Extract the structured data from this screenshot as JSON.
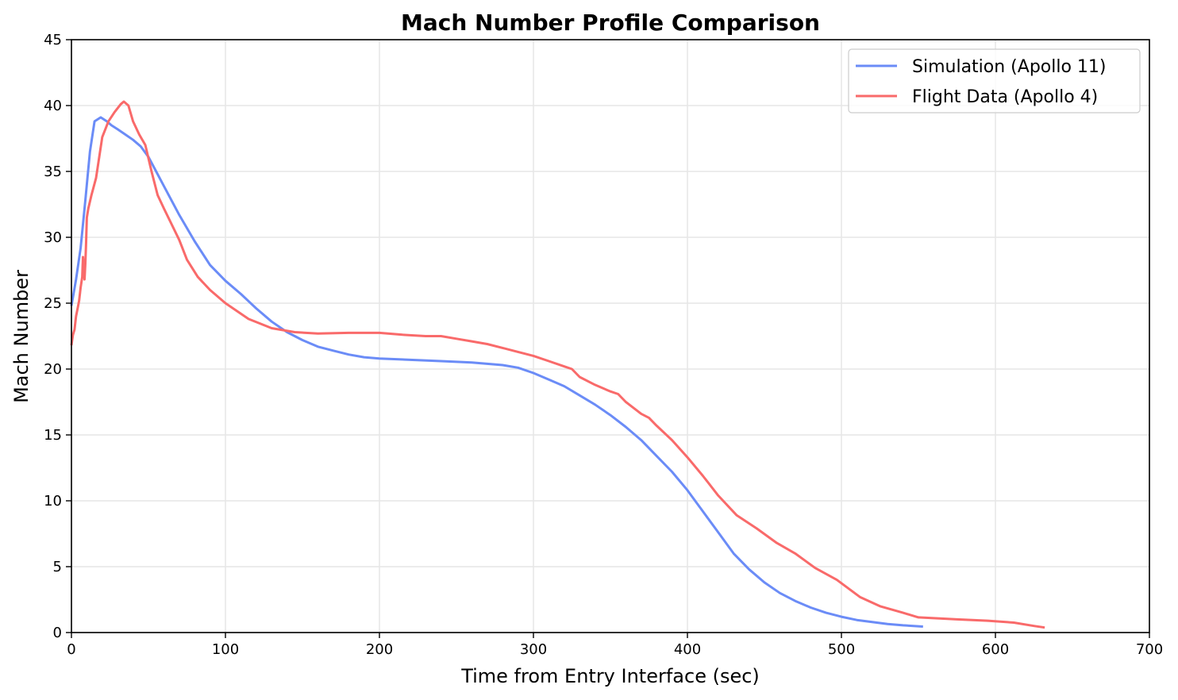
{
  "chart_data": {
    "type": "line",
    "title": "Mach Number Profile Comparison",
    "xlabel": "Time from Entry Interface (sec)",
    "ylabel": "Mach Number",
    "xlim": [
      0,
      700
    ],
    "ylim": [
      0,
      45
    ],
    "xticks": [
      0,
      100,
      200,
      300,
      400,
      500,
      600,
      700
    ],
    "yticks": [
      0,
      5,
      10,
      15,
      20,
      25,
      30,
      35,
      40,
      45
    ],
    "grid": true,
    "legend_position": "upper right",
    "series": [
      {
        "name": "Simulation (Apollo 11)",
        "color": "#6b8cf7",
        "x": [
          0,
          3,
          6,
          9,
          12,
          15,
          19,
          23,
          26,
          30,
          35,
          40,
          45,
          50,
          55,
          60,
          70,
          80,
          90,
          100,
          110,
          120,
          130,
          140,
          150,
          160,
          170,
          180,
          190,
          200,
          220,
          240,
          260,
          280,
          290,
          300,
          310,
          320,
          330,
          340,
          350,
          360,
          370,
          380,
          390,
          400,
          410,
          420,
          430,
          440,
          450,
          460,
          470,
          480,
          490,
          500,
          510,
          520,
          530,
          540,
          553
        ],
        "y": [
          24.8,
          26.8,
          29.2,
          32.8,
          36.5,
          38.8,
          39.1,
          38.8,
          38.5,
          38.2,
          37.8,
          37.4,
          36.9,
          36.1,
          35.0,
          33.9,
          31.7,
          29.7,
          27.9,
          26.7,
          25.7,
          24.6,
          23.6,
          22.8,
          22.2,
          21.7,
          21.4,
          21.1,
          20.9,
          20.8,
          20.7,
          20.6,
          20.5,
          20.3,
          20.1,
          19.7,
          19.2,
          18.7,
          18.0,
          17.3,
          16.5,
          15.6,
          14.6,
          13.4,
          12.2,
          10.8,
          9.2,
          7.6,
          6.0,
          4.8,
          3.8,
          3.0,
          2.4,
          1.9,
          1.5,
          1.2,
          0.95,
          0.8,
          0.65,
          0.55,
          0.45
        ]
      },
      {
        "name": "Flight Data (Apollo 4)",
        "color": "#f96a6a",
        "x": [
          0,
          1,
          2,
          3,
          4,
          5,
          6,
          7,
          7.5,
          8,
          8.5,
          9,
          9.5,
          10,
          11,
          13,
          16,
          20,
          24,
          28,
          32,
          34,
          37,
          40,
          44,
          48,
          52,
          56,
          60,
          65,
          70,
          75,
          82,
          90,
          100,
          115,
          130,
          145,
          160,
          180,
          200,
          215,
          230,
          240,
          250,
          260,
          270,
          280,
          290,
          300,
          310,
          320,
          325,
          330,
          340,
          350,
          355,
          360,
          370,
          375,
          380,
          390,
          400,
          410,
          420,
          432,
          445,
          458,
          470,
          483,
          497,
          512,
          525,
          540,
          550,
          575,
          595,
          612,
          625,
          632
        ],
        "y": [
          21.8,
          22.6,
          23.0,
          24.0,
          24.6,
          25.2,
          26.2,
          27.0,
          28.5,
          27.5,
          26.8,
          28.0,
          29.5,
          31.5,
          32.2,
          33.2,
          34.5,
          37.6,
          38.8,
          39.5,
          40.1,
          40.3,
          40.0,
          38.8,
          37.8,
          37.0,
          35.0,
          33.2,
          32.2,
          31.0,
          29.8,
          28.3,
          27.0,
          26.0,
          25.0,
          23.8,
          23.1,
          22.8,
          22.7,
          22.75,
          22.75,
          22.6,
          22.5,
          22.5,
          22.3,
          22.1,
          21.9,
          21.6,
          21.3,
          21.0,
          20.6,
          20.2,
          20.0,
          19.4,
          18.8,
          18.3,
          18.1,
          17.5,
          16.6,
          16.3,
          15.7,
          14.6,
          13.3,
          11.9,
          10.4,
          8.9,
          7.9,
          6.8,
          6.0,
          4.9,
          4.0,
          2.7,
          2.0,
          1.5,
          1.15,
          1.0,
          0.9,
          0.75,
          0.5,
          0.38
        ]
      }
    ]
  }
}
